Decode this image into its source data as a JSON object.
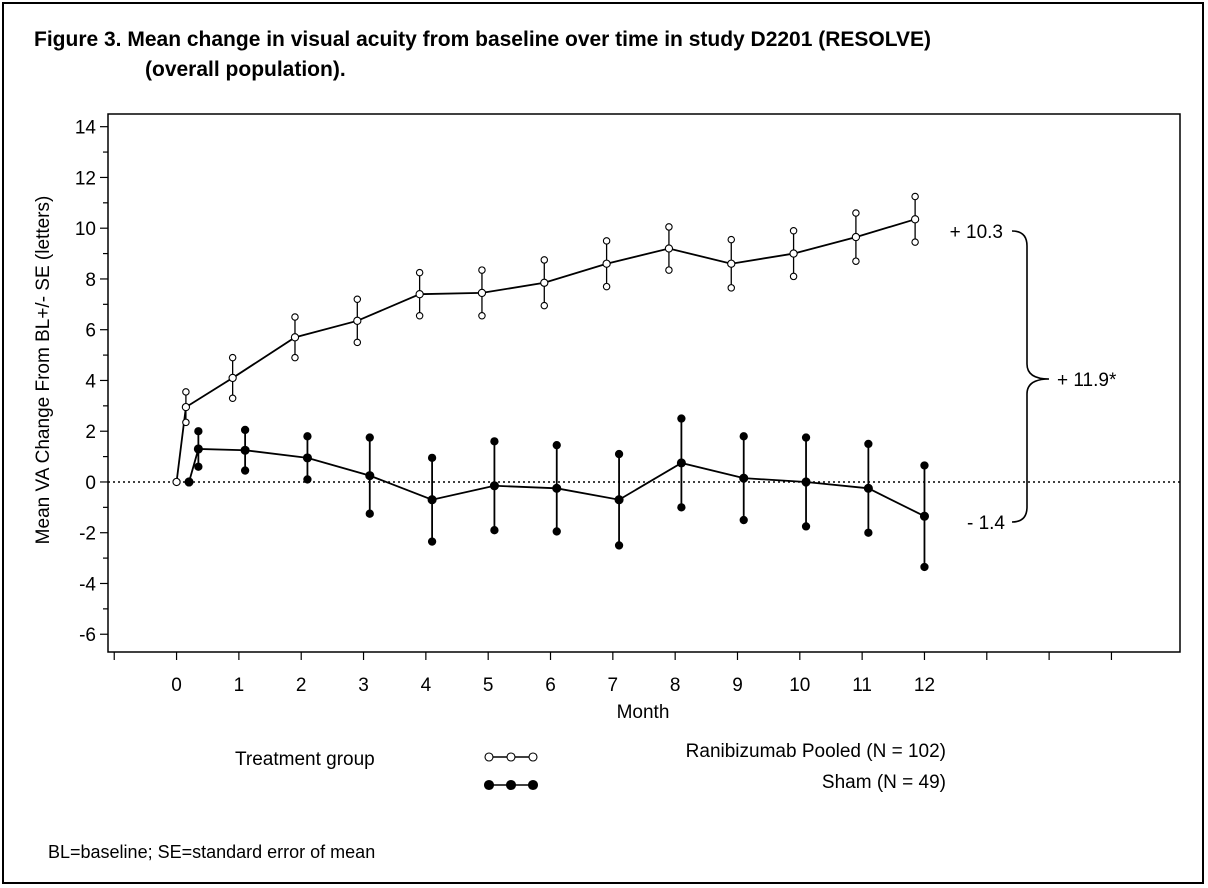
{
  "figure": {
    "title_line1": "Figure 3.  Mean change in visual acuity from baseline over time in study D2201 (RESOLVE)",
    "title_line2": "(overall population).",
    "footnote": "BL=baseline; SE=standard error of mean"
  },
  "chart_data": {
    "type": "line",
    "title": "Mean change in visual acuity from baseline over time in study D2201 (RESOLVE) (overall population).",
    "xlabel": "Month",
    "ylabel": "Mean VA Change From BL+/- SE (letters)",
    "xlim": [
      -1.1,
      16.1
    ],
    "ylim": [
      -6.7,
      14.5
    ],
    "x_ticks": [
      0,
      1,
      2,
      3,
      4,
      5,
      6,
      7,
      8,
      9,
      10,
      11,
      12
    ],
    "y_ticks": [
      -6,
      -4,
      -2,
      0,
      2,
      4,
      6,
      8,
      10,
      12,
      14
    ],
    "reference_line": {
      "y": 0,
      "style": "dotted"
    },
    "legend": {
      "heading": "Treatment group",
      "placement": "bottom",
      "entries": [
        "Ranibizumab Pooled (N = 102)",
        "Sham (N = 49)"
      ]
    },
    "series": [
      {
        "name": "Ranibizumab Pooled (N = 102)",
        "marker": "open-circle",
        "points": [
          {
            "x": 0,
            "y": 0
          },
          {
            "x": 0.15,
            "y": 2.95,
            "se": 0.6
          },
          {
            "x": 0.9,
            "y": 4.1,
            "se": 0.8
          },
          {
            "x": 1.9,
            "y": 5.7,
            "se": 0.8
          },
          {
            "x": 2.9,
            "y": 6.35,
            "se": 0.85
          },
          {
            "x": 3.9,
            "y": 7.4,
            "se": 0.85
          },
          {
            "x": 4.9,
            "y": 7.45,
            "se": 0.9
          },
          {
            "x": 5.9,
            "y": 7.85,
            "se": 0.9
          },
          {
            "x": 6.9,
            "y": 8.6,
            "se": 0.9
          },
          {
            "x": 7.9,
            "y": 9.2,
            "se": 0.85
          },
          {
            "x": 8.9,
            "y": 8.6,
            "se": 0.95
          },
          {
            "x": 9.9,
            "y": 9.0,
            "se": 0.9
          },
          {
            "x": 10.9,
            "y": 9.65,
            "se": 0.95
          },
          {
            "x": 11.85,
            "y": 10.35,
            "se": 0.9
          }
        ]
      },
      {
        "name": "Sham (N = 49)",
        "marker": "filled-circle",
        "points": [
          {
            "x": 0.2,
            "y": 0
          },
          {
            "x": 0.35,
            "y": 1.3,
            "se": 0.7
          },
          {
            "x": 1.1,
            "y": 1.25,
            "se": 0.8
          },
          {
            "x": 2.1,
            "y": 0.95,
            "se": 0.85
          },
          {
            "x": 3.1,
            "y": 0.25,
            "se": 1.5
          },
          {
            "x": 4.1,
            "y": -0.7,
            "se": 1.65
          },
          {
            "x": 5.1,
            "y": -0.15,
            "se": 1.75
          },
          {
            "x": 6.1,
            "y": -0.25,
            "se": 1.7
          },
          {
            "x": 7.1,
            "y": -0.7,
            "se": 1.8
          },
          {
            "x": 8.1,
            "y": 0.75,
            "se": 1.75
          },
          {
            "x": 9.1,
            "y": 0.15,
            "se": 1.65
          },
          {
            "x": 10.1,
            "y": 0.0,
            "se": 1.75
          },
          {
            "x": 11.1,
            "y": -0.25,
            "se": 1.75
          },
          {
            "x": 12.0,
            "y": -1.35,
            "se": 2.0
          }
        ]
      }
    ],
    "annotations": {
      "ranibizumab_end": "+ 10.3",
      "difference": "+ 11.9*",
      "sham_end": "- 1.4"
    }
  }
}
